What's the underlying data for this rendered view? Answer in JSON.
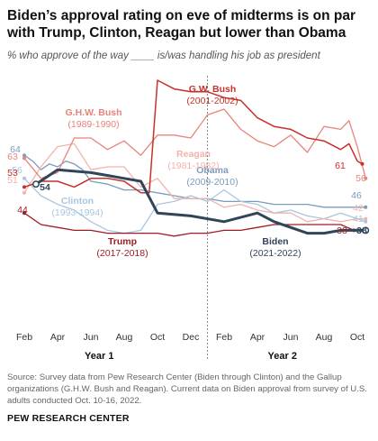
{
  "title": "Biden’s approval rating on eve of midterms is on par with Trump, Clinton, Reagan but lower than Obama",
  "subtitle": "% who approve of the way ____ is/was handling his job as president",
  "source": "Source: Survey data from Pew Research Center (Biden through Clinton) and the Gallup organizations (G.H.W. Bush and Reagan). Current data on Biden approval from survey of U.S. adults conducted Oct. 10-16, 2022.",
  "org": "PEW RESEARCH CENTER",
  "chart_data": {
    "type": "line",
    "x_unit": "months since February of year 1",
    "xlim": [
      0,
      22
    ],
    "ylim": [
      30,
      96
    ],
    "grid": false,
    "x_ticks": [
      {
        "x": 0,
        "label": "Feb"
      },
      {
        "x": 2,
        "label": "Apr"
      },
      {
        "x": 4,
        "label": "Jun"
      },
      {
        "x": 6,
        "label": "Aug"
      },
      {
        "x": 8,
        "label": "Oct"
      },
      {
        "x": 10,
        "label": "Dec"
      },
      {
        "x": 12,
        "label": "Feb"
      },
      {
        "x": 14,
        "label": "Apr"
      },
      {
        "x": 16,
        "label": "Jun"
      },
      {
        "x": 18,
        "label": "Aug"
      },
      {
        "x": 20,
        "label": "Oct"
      },
      {
        "x": 22,
        "label": "Dec"
      }
    ],
    "year_labels": [
      {
        "x": 4.5,
        "label": "Year 1"
      },
      {
        "x": 15.5,
        "label": "Year 2"
      }
    ],
    "divider_x": 11,
    "series": [
      {
        "name": "Obama",
        "years": "(2009-2010)",
        "color": "#7a9cbd",
        "width": 1.3,
        "start_label": "64",
        "end_label": "46",
        "points": [
          [
            0,
            64
          ],
          [
            0.5,
            62
          ],
          [
            1,
            59
          ],
          [
            1.5,
            61
          ],
          [
            2,
            60
          ],
          [
            2.5,
            62
          ],
          [
            3,
            61
          ],
          [
            3.5,
            59
          ],
          [
            4,
            55
          ],
          [
            5,
            54
          ],
          [
            6,
            52
          ],
          [
            7,
            52
          ],
          [
            8,
            51
          ],
          [
            9,
            50
          ],
          [
            10,
            49
          ],
          [
            11,
            49
          ],
          [
            12,
            48
          ],
          [
            13,
            48
          ],
          [
            14,
            48
          ],
          [
            15,
            47
          ],
          [
            16,
            47
          ],
          [
            17,
            47
          ],
          [
            18,
            46
          ],
          [
            19,
            46
          ],
          [
            20,
            46
          ],
          [
            20.5,
            46
          ]
        ]
      },
      {
        "name": "Clinton",
        "years": "(1993-1994)",
        "color": "#a9c6df",
        "width": 1.3,
        "start_label": "56",
        "end_label": "41",
        "points": [
          [
            0,
            56
          ],
          [
            1,
            50
          ],
          [
            2,
            47
          ],
          [
            3,
            45
          ],
          [
            4,
            41
          ],
          [
            5,
            38
          ],
          [
            6,
            37
          ],
          [
            7,
            38
          ],
          [
            8,
            47
          ],
          [
            9,
            48
          ],
          [
            10,
            50
          ],
          [
            11,
            48
          ],
          [
            12,
            52
          ],
          [
            13,
            48
          ],
          [
            14,
            47
          ],
          [
            15,
            44
          ],
          [
            16,
            45
          ],
          [
            17,
            43
          ],
          [
            18,
            42
          ],
          [
            19,
            44
          ],
          [
            20,
            42
          ],
          [
            20.5,
            41
          ]
        ]
      },
      {
        "name": "Reagan",
        "years": "(1981-1982)",
        "color": "#f2b3ac",
        "width": 1.3,
        "start_label": "51",
        "end_label": "42",
        "points": [
          [
            0,
            51
          ],
          [
            1,
            60
          ],
          [
            2,
            67
          ],
          [
            3,
            68
          ],
          [
            4,
            59
          ],
          [
            5,
            60
          ],
          [
            6,
            60
          ],
          [
            7,
            53
          ],
          [
            8,
            56
          ],
          [
            9,
            49
          ],
          [
            10,
            49
          ],
          [
            11,
            49
          ],
          [
            12,
            46
          ],
          [
            13,
            47
          ],
          [
            14,
            45
          ],
          [
            15,
            44
          ],
          [
            16,
            44
          ],
          [
            17,
            41
          ],
          [
            18,
            42
          ],
          [
            19,
            41
          ],
          [
            20,
            42
          ],
          [
            20.5,
            42
          ]
        ]
      },
      {
        "name": "G.H.W. Bush",
        "years": "(1989-1990)",
        "color": "#e8847c",
        "width": 1.3,
        "start_label": "63",
        "end_label": "56",
        "points": [
          [
            0,
            63
          ],
          [
            1,
            56
          ],
          [
            2,
            58
          ],
          [
            3,
            70
          ],
          [
            4,
            70
          ],
          [
            5,
            66
          ],
          [
            6,
            69
          ],
          [
            7,
            64
          ],
          [
            8,
            71
          ],
          [
            9,
            71
          ],
          [
            10,
            70
          ],
          [
            11,
            78
          ],
          [
            12,
            80
          ],
          [
            13,
            73
          ],
          [
            14,
            69
          ],
          [
            15,
            67
          ],
          [
            16,
            71
          ],
          [
            17,
            65
          ],
          [
            18,
            74
          ],
          [
            19,
            73
          ],
          [
            19.5,
            76
          ],
          [
            20,
            67
          ],
          [
            20.5,
            56
          ]
        ]
      },
      {
        "name": "G.W. Bush",
        "years": "(2001-2002)",
        "color": "#c8302b",
        "width": 1.5,
        "start_label": "53",
        "end_label": "61",
        "points": [
          [
            0,
            53
          ],
          [
            1,
            55
          ],
          [
            2,
            55
          ],
          [
            3,
            53
          ],
          [
            4,
            56
          ],
          [
            5,
            56
          ],
          [
            6,
            55
          ],
          [
            7,
            51
          ],
          [
            7.5,
            51
          ],
          [
            8,
            90
          ],
          [
            9,
            87
          ],
          [
            10,
            86
          ],
          [
            11,
            86
          ],
          [
            12,
            84
          ],
          [
            13,
            83
          ],
          [
            14,
            77
          ],
          [
            15,
            74
          ],
          [
            16,
            73
          ],
          [
            17,
            70
          ],
          [
            18,
            69
          ],
          [
            19,
            66
          ],
          [
            19.5,
            68
          ],
          [
            20,
            62
          ],
          [
            20.3,
            61
          ]
        ]
      },
      {
        "name": "Trump",
        "years": "(2017-2018)",
        "color": "#9e1d24",
        "width": 1.3,
        "start_label": "44",
        "end_label": "38",
        "points": [
          [
            0,
            44
          ],
          [
            1,
            40
          ],
          [
            2,
            39
          ],
          [
            3,
            38
          ],
          [
            4,
            38
          ],
          [
            5,
            37
          ],
          [
            6,
            37
          ],
          [
            7,
            37
          ],
          [
            8,
            37
          ],
          [
            9,
            36
          ],
          [
            10,
            37
          ],
          [
            11,
            37
          ],
          [
            12,
            38
          ],
          [
            13,
            38
          ],
          [
            14,
            39
          ],
          [
            15,
            40
          ],
          [
            16,
            40
          ],
          [
            17,
            40
          ],
          [
            18,
            40
          ],
          [
            19,
            40
          ],
          [
            19.8,
            38
          ]
        ]
      },
      {
        "name": "Biden",
        "years": "(2021-2022)",
        "color": "#32445a",
        "width": 3,
        "start_label": "54",
        "end_label": "38",
        "points": [
          [
            0.7,
            54
          ],
          [
            2,
            59
          ],
          [
            4,
            58
          ],
          [
            6,
            56
          ],
          [
            7,
            55
          ],
          [
            8,
            44
          ],
          [
            10,
            43
          ],
          [
            12,
            41
          ],
          [
            14,
            44
          ],
          [
            15,
            41
          ],
          [
            16,
            39
          ],
          [
            17,
            37
          ],
          [
            18,
            37
          ],
          [
            19,
            38
          ],
          [
            20.5,
            38
          ]
        ]
      }
    ]
  }
}
